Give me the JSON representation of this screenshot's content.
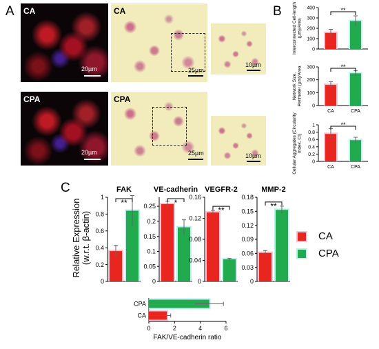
{
  "panels": {
    "A": "A",
    "B": "B",
    "C": "C"
  },
  "images": {
    "top_fluor_label": "CA",
    "top_fluor_scale": "20µm",
    "top_bright_label": "CA",
    "top_bright_scale": "25µm",
    "top_zoom_scale": "10µm",
    "bottom_fluor_label": "CPA",
    "bottom_fluor_scale": "20µm",
    "bottom_bright_label": "CPA",
    "bottom_bright_scale": "25µm",
    "bottom_zoom_scale": "10µm"
  },
  "colors": {
    "CA": "#e8251f",
    "CPA": "#22aa4f",
    "CA_glow": "#f7c6d6",
    "CPA_glow": "#bfeff0"
  },
  "legend": {
    "CA": "CA",
    "CPA": "CPA"
  },
  "chart_data": [
    {
      "id": "B1",
      "type": "bar",
      "ylabel": "Interconnected Cell-length (µm)/Area",
      "categories": [
        "CA",
        "CPA"
      ],
      "values": [
        155,
        270
      ],
      "errors": [
        35,
        50
      ],
      "ylim": [
        0,
        400
      ],
      "yticks": [
        "0",
        "100",
        "200",
        "300",
        "400"
      ],
      "significance": "**"
    },
    {
      "id": "B2",
      "type": "bar",
      "ylabel": "Network Size, Perimeter (µm)/Area",
      "categories": [
        "CA",
        "CPA"
      ],
      "values": [
        160,
        250
      ],
      "errors": [
        25,
        20
      ],
      "ylim": [
        0,
        300
      ],
      "yticks": [
        "0",
        "100",
        "200",
        "300"
      ],
      "significance": "**"
    },
    {
      "id": "B3",
      "type": "bar",
      "ylabel": "Cellular Aggregates (Circularity Index, CI)",
      "categories": [
        "CA",
        "CPA"
      ],
      "values": [
        0.75,
        0.58
      ],
      "errors": [
        0.15,
        0.08
      ],
      "ylim": [
        0,
        1
      ],
      "yticks": [
        "0",
        "0.2",
        "0.4",
        "0.6",
        "0.8",
        "1"
      ],
      "significance": "**"
    },
    {
      "id": "C_FAK",
      "type": "bar",
      "title": "FAK",
      "ylabel": "Relative Expression (w.r.t. β-actin)",
      "categories": [
        "CA",
        "CPA"
      ],
      "values": [
        0.36,
        0.84
      ],
      "errors": [
        0.07,
        0.18
      ],
      "ylim": [
        0,
        1
      ],
      "yticks": [
        "0",
        "0.2",
        "0.4",
        "0.6",
        "0.8",
        "1"
      ],
      "significance": "**"
    },
    {
      "id": "C_VE",
      "type": "bar",
      "title": "VE-cadherin",
      "categories": [
        "CA",
        "CPA"
      ],
      "values": [
        0.257,
        0.18
      ],
      "errors": [
        0.01,
        0.025
      ],
      "ylim": [
        0,
        0.28
      ],
      "yticks": [
        "0",
        "0.05",
        "0.1",
        "0.15",
        "0.2",
        "0.25"
      ],
      "significance": "*"
    },
    {
      "id": "C_VEGFR",
      "type": "bar",
      "title": "VEGFR-2",
      "categories": [
        "CA",
        "CPA"
      ],
      "values": [
        0.131,
        0.042
      ],
      "errors": [
        0.004,
        0.002
      ],
      "ylim": [
        0,
        0.16
      ],
      "yticks": [
        "0",
        "0.04",
        "0.08",
        "0.12",
        "0.16"
      ],
      "significance": "**"
    },
    {
      "id": "C_MMP",
      "type": "bar",
      "title": "MMP-2",
      "categories": [
        "CA",
        "CPA"
      ],
      "values": [
        0.061,
        0.153
      ],
      "errors": [
        0.005,
        0.008
      ],
      "ylim": [
        0,
        0.18
      ],
      "yticks": [
        "0",
        "0.03",
        "0.06",
        "0.09",
        "0.12",
        "0.15",
        "0.18"
      ],
      "significance": "**"
    },
    {
      "id": "C_ratio",
      "type": "bar",
      "orientation": "horizontal",
      "xlabel": "FAK/VE-cadherin ratio",
      "categories": [
        "CPA",
        "CA"
      ],
      "values": [
        4.7,
        1.4
      ],
      "errors": [
        1.1,
        0.3
      ],
      "xlim": [
        0,
        6
      ],
      "xticks": [
        "0",
        "2",
        "4",
        "6"
      ]
    }
  ]
}
